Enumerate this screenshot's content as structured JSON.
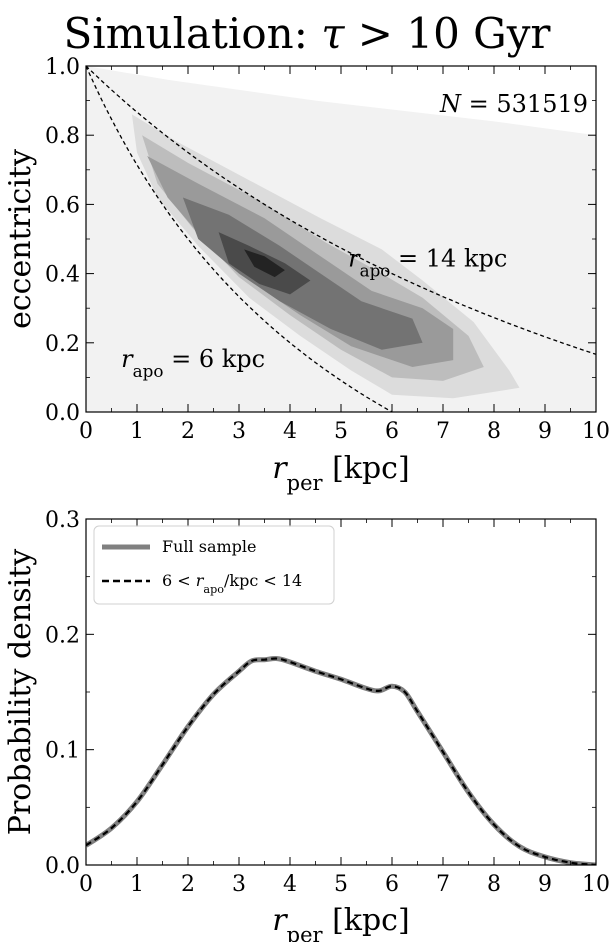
{
  "title": "Simulation: τ > 10 Gyr",
  "chart_data": [
    {
      "type": "heatmap",
      "xlabel": "r_per [kpc]",
      "ylabel": "eccentricity",
      "xlim": [
        0,
        10
      ],
      "ylim": [
        0,
        1.0
      ],
      "xticks": [
        "0",
        "1",
        "2",
        "3",
        "4",
        "5",
        "6",
        "7",
        "8",
        "9",
        "10"
      ],
      "yticks": [
        "0.0",
        "0.2",
        "0.4",
        "0.6",
        "0.8",
        "1.0"
      ],
      "annotation": "N = 531519",
      "colormap": "greys",
      "contours": [
        {
          "level": 1,
          "color": "#f2f2f2",
          "points": [
            [
              0,
              1.0
            ],
            [
              1.6,
              0.96
            ],
            [
              4.5,
              0.9
            ],
            [
              8,
              0.84
            ],
            [
              10,
              0.8
            ],
            [
              10,
              0.0
            ],
            [
              0,
              0.0
            ]
          ]
        },
        {
          "level": 2,
          "color": "#dcdcdc",
          "points": [
            [
              0.9,
              0.86
            ],
            [
              1.8,
              0.78
            ],
            [
              3.2,
              0.67
            ],
            [
              4.6,
              0.56
            ],
            [
              5.8,
              0.47
            ],
            [
              6.6,
              0.38
            ],
            [
              7.6,
              0.26
            ],
            [
              8.3,
              0.12
            ],
            [
              8.5,
              0.07
            ],
            [
              7.2,
              0.04
            ],
            [
              6.0,
              0.05
            ],
            [
              5.2,
              0.12
            ],
            [
              4.2,
              0.22
            ],
            [
              3.2,
              0.33
            ],
            [
              2.2,
              0.48
            ],
            [
              1.4,
              0.62
            ],
            [
              1.0,
              0.75
            ]
          ]
        },
        {
          "level": 3,
          "color": "#bdbdbd",
          "points": [
            [
              1.1,
              0.8
            ],
            [
              2.0,
              0.72
            ],
            [
              3.4,
              0.61
            ],
            [
              4.7,
              0.49
            ],
            [
              5.8,
              0.4
            ],
            [
              6.6,
              0.33
            ],
            [
              7.5,
              0.22
            ],
            [
              7.8,
              0.13
            ],
            [
              7.0,
              0.09
            ],
            [
              6.0,
              0.1
            ],
            [
              5.0,
              0.18
            ],
            [
              4.0,
              0.28
            ],
            [
              3.0,
              0.39
            ],
            [
              2.1,
              0.53
            ],
            [
              1.4,
              0.66
            ]
          ]
        },
        {
          "level": 4,
          "color": "#9a9a9a",
          "points": [
            [
              1.2,
              0.74
            ],
            [
              2.2,
              0.66
            ],
            [
              3.5,
              0.56
            ],
            [
              4.7,
              0.44
            ],
            [
              5.6,
              0.35
            ],
            [
              6.6,
              0.3
            ],
            [
              7.2,
              0.24
            ],
            [
              7.2,
              0.15
            ],
            [
              6.4,
              0.13
            ],
            [
              5.2,
              0.19
            ],
            [
              4.2,
              0.28
            ],
            [
              3.2,
              0.38
            ],
            [
              2.3,
              0.5
            ],
            [
              1.6,
              0.62
            ]
          ]
        },
        {
          "level": 5,
          "color": "#737373",
          "points": [
            [
              1.9,
              0.62
            ],
            [
              2.8,
              0.57
            ],
            [
              3.8,
              0.48
            ],
            [
              4.6,
              0.4
            ],
            [
              5.4,
              0.32
            ],
            [
              6.4,
              0.27
            ],
            [
              6.6,
              0.2
            ],
            [
              5.8,
              0.18
            ],
            [
              4.8,
              0.24
            ],
            [
              3.8,
              0.32
            ],
            [
              3.0,
              0.4
            ],
            [
              2.2,
              0.5
            ]
          ]
        },
        {
          "level": 6,
          "color": "#4a4a4a",
          "points": [
            [
              2.6,
              0.52
            ],
            [
              3.2,
              0.48
            ],
            [
              3.9,
              0.43
            ],
            [
              4.4,
              0.38
            ],
            [
              4.0,
              0.34
            ],
            [
              3.4,
              0.37
            ],
            [
              2.8,
              0.43
            ]
          ]
        },
        {
          "level": 7,
          "color": "#232323",
          "points": [
            [
              3.1,
              0.47
            ],
            [
              3.5,
              0.45
            ],
            [
              3.9,
              0.41
            ],
            [
              3.7,
              0.39
            ],
            [
              3.3,
              0.42
            ]
          ]
        }
      ],
      "series": [
        {
          "name": "r_apo = 14 kpc",
          "style": "dashed",
          "color": "#000000",
          "r_apo": 14
        },
        {
          "name": "r_apo = 6 kpc",
          "style": "dashed",
          "color": "#000000",
          "r_apo": 6
        }
      ],
      "curve_labels": [
        {
          "text": "r_apo = 14 kpc",
          "x": 6.7,
          "y": 0.42
        },
        {
          "text": "r_apo = 6 kpc",
          "x": 2.1,
          "y": 0.13
        }
      ]
    },
    {
      "type": "line",
      "xlabel": "r_per [kpc]",
      "ylabel": "Probability density",
      "xlim": [
        0,
        10
      ],
      "ylim": [
        0,
        0.3
      ],
      "xticks": [
        "0",
        "1",
        "2",
        "3",
        "4",
        "5",
        "6",
        "7",
        "8",
        "9",
        "10"
      ],
      "yticks": [
        "0.0",
        "0.1",
        "0.2",
        "0.3"
      ],
      "legend": "top-left",
      "series": [
        {
          "name": "Full sample",
          "color": "#808080",
          "style": "solid",
          "x": [
            0,
            0.5,
            1.0,
            1.5,
            2.0,
            2.5,
            3.0,
            3.25,
            3.5,
            3.75,
            4.0,
            4.5,
            5.0,
            5.5,
            5.75,
            6.0,
            6.25,
            6.5,
            7.0,
            7.5,
            8.0,
            8.5,
            9.0,
            9.5,
            10.0
          ],
          "y": [
            0.017,
            0.032,
            0.055,
            0.087,
            0.12,
            0.148,
            0.168,
            0.177,
            0.178,
            0.179,
            0.176,
            0.168,
            0.161,
            0.153,
            0.151,
            0.155,
            0.15,
            0.133,
            0.098,
            0.063,
            0.035,
            0.016,
            0.007,
            0.002,
            0.0
          ]
        },
        {
          "name": "6 < r_apo/kpc < 14",
          "color": "#000000",
          "style": "dashed",
          "x": [
            0,
            0.5,
            1.0,
            1.5,
            2.0,
            2.5,
            3.0,
            3.25,
            3.5,
            3.75,
            4.0,
            4.5,
            5.0,
            5.5,
            5.75,
            6.0,
            6.25,
            6.5,
            7.0,
            7.5,
            8.0,
            8.5,
            9.0,
            9.5,
            10.0
          ],
          "y": [
            0.017,
            0.032,
            0.055,
            0.087,
            0.12,
            0.148,
            0.168,
            0.177,
            0.178,
            0.179,
            0.176,
            0.168,
            0.161,
            0.153,
            0.151,
            0.155,
            0.15,
            0.133,
            0.098,
            0.063,
            0.035,
            0.016,
            0.007,
            0.002,
            0.0
          ]
        }
      ]
    }
  ]
}
